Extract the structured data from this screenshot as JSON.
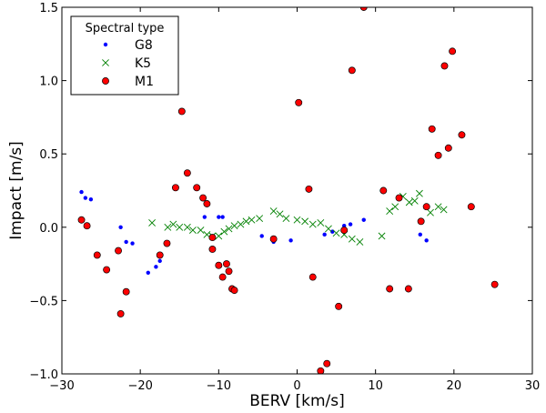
{
  "chart_data": {
    "type": "scatter",
    "title": "",
    "xlabel": "BERV [km/s]",
    "ylabel": "Impact [m/s]",
    "xlim": [
      -30,
      30
    ],
    "ylim": [
      -1.0,
      1.5
    ],
    "xticks": [
      -30,
      -20,
      -10,
      0,
      10,
      20,
      30
    ],
    "xtick_labels": [
      "−30",
      "−20",
      "−10",
      "0",
      "10",
      "20",
      "30"
    ],
    "yticks": [
      -1.0,
      -0.5,
      0.0,
      0.5,
      1.0,
      1.5
    ],
    "ytick_labels": [
      "−1.0",
      "−0.5",
      "0.0",
      "0.5",
      "1.0",
      "1.5"
    ],
    "grid": false,
    "legend": {
      "title": "Spectral type",
      "position": "top-left"
    },
    "series": [
      {
        "name": "G8",
        "marker": "dot",
        "color": "#0000ff",
        "points": [
          [
            -27.5,
            0.24
          ],
          [
            -27.0,
            0.2
          ],
          [
            -26.3,
            0.19
          ],
          [
            -22.5,
            0.0
          ],
          [
            -21.8,
            -0.1
          ],
          [
            -21.0,
            -0.11
          ],
          [
            -19.0,
            -0.31
          ],
          [
            -18.0,
            -0.27
          ],
          [
            -17.5,
            -0.23
          ],
          [
            -11.8,
            0.07
          ],
          [
            -10.0,
            0.07
          ],
          [
            -9.5,
            0.07
          ],
          [
            -4.5,
            -0.06
          ],
          [
            -3.0,
            -0.1
          ],
          [
            -0.8,
            -0.09
          ],
          [
            3.5,
            -0.05
          ],
          [
            4.5,
            -0.03
          ],
          [
            6.0,
            0.01
          ],
          [
            6.8,
            0.02
          ],
          [
            8.5,
            0.05
          ],
          [
            15.7,
            -0.05
          ],
          [
            16.5,
            -0.09
          ]
        ]
      },
      {
        "name": "K5",
        "marker": "x",
        "color": "#008000",
        "points": [
          [
            -18.5,
            0.03
          ],
          [
            -16.5,
            0.0
          ],
          [
            -15.8,
            0.02
          ],
          [
            -15.0,
            0.0
          ],
          [
            -14.0,
            0.0
          ],
          [
            -13.3,
            -0.02
          ],
          [
            -12.3,
            -0.02
          ],
          [
            -11.5,
            -0.05
          ],
          [
            -10.8,
            -0.06
          ],
          [
            -10.0,
            -0.06
          ],
          [
            -9.3,
            -0.03
          ],
          [
            -8.7,
            -0.01
          ],
          [
            -8.0,
            0.01
          ],
          [
            -7.2,
            0.02
          ],
          [
            -6.5,
            0.04
          ],
          [
            -5.8,
            0.05
          ],
          [
            -4.8,
            0.06
          ],
          [
            -3.0,
            0.11
          ],
          [
            -2.2,
            0.09
          ],
          [
            -1.4,
            0.06
          ],
          [
            0.0,
            0.05
          ],
          [
            1.0,
            0.04
          ],
          [
            2.0,
            0.02
          ],
          [
            3.0,
            0.03
          ],
          [
            4.0,
            -0.01
          ],
          [
            5.0,
            -0.04
          ],
          [
            6.0,
            -0.05
          ],
          [
            7.0,
            -0.08
          ],
          [
            8.0,
            -0.1
          ],
          [
            10.8,
            -0.06
          ],
          [
            11.8,
            0.11
          ],
          [
            12.5,
            0.14
          ],
          [
            13.5,
            0.21
          ],
          [
            14.3,
            0.17
          ],
          [
            15.0,
            0.18
          ],
          [
            15.6,
            0.23
          ],
          [
            17.0,
            0.1
          ],
          [
            18.0,
            0.14
          ],
          [
            18.7,
            0.12
          ]
        ]
      },
      {
        "name": "M1",
        "marker": "circle",
        "color": "#ff0000",
        "points": [
          [
            -27.5,
            0.05
          ],
          [
            -26.8,
            0.01
          ],
          [
            -25.5,
            -0.19
          ],
          [
            -24.3,
            -0.29
          ],
          [
            -22.8,
            -0.16
          ],
          [
            -22.5,
            -0.59
          ],
          [
            -21.8,
            -0.44
          ],
          [
            -17.5,
            -0.19
          ],
          [
            -16.6,
            -0.11
          ],
          [
            -15.5,
            0.27
          ],
          [
            -14.7,
            0.79
          ],
          [
            -14.0,
            0.37
          ],
          [
            -12.8,
            0.27
          ],
          [
            -12.0,
            0.2
          ],
          [
            -11.5,
            0.16
          ],
          [
            -10.8,
            -0.07
          ],
          [
            -10.8,
            -0.15
          ],
          [
            -10.0,
            -0.26
          ],
          [
            -9.5,
            -0.34
          ],
          [
            -9.0,
            -0.25
          ],
          [
            -8.7,
            -0.3
          ],
          [
            -8.3,
            -0.42
          ],
          [
            -8.0,
            -0.43
          ],
          [
            -3.0,
            -0.08
          ],
          [
            0.2,
            0.85
          ],
          [
            1.5,
            0.26
          ],
          [
            2.0,
            -0.34
          ],
          [
            3.0,
            -0.98
          ],
          [
            3.8,
            -0.93
          ],
          [
            5.3,
            -0.54
          ],
          [
            6.0,
            -0.02
          ],
          [
            7.0,
            1.07
          ],
          [
            8.5,
            1.5
          ],
          [
            11.0,
            0.25
          ],
          [
            11.8,
            -0.42
          ],
          [
            13.0,
            0.2
          ],
          [
            14.2,
            -0.42
          ],
          [
            15.8,
            0.04
          ],
          [
            16.5,
            0.14
          ],
          [
            17.2,
            0.67
          ],
          [
            18.0,
            0.49
          ],
          [
            18.8,
            1.1
          ],
          [
            19.3,
            0.54
          ],
          [
            19.8,
            1.2
          ],
          [
            21.0,
            0.63
          ],
          [
            22.2,
            0.14
          ],
          [
            25.2,
            -0.39
          ]
        ]
      }
    ]
  }
}
